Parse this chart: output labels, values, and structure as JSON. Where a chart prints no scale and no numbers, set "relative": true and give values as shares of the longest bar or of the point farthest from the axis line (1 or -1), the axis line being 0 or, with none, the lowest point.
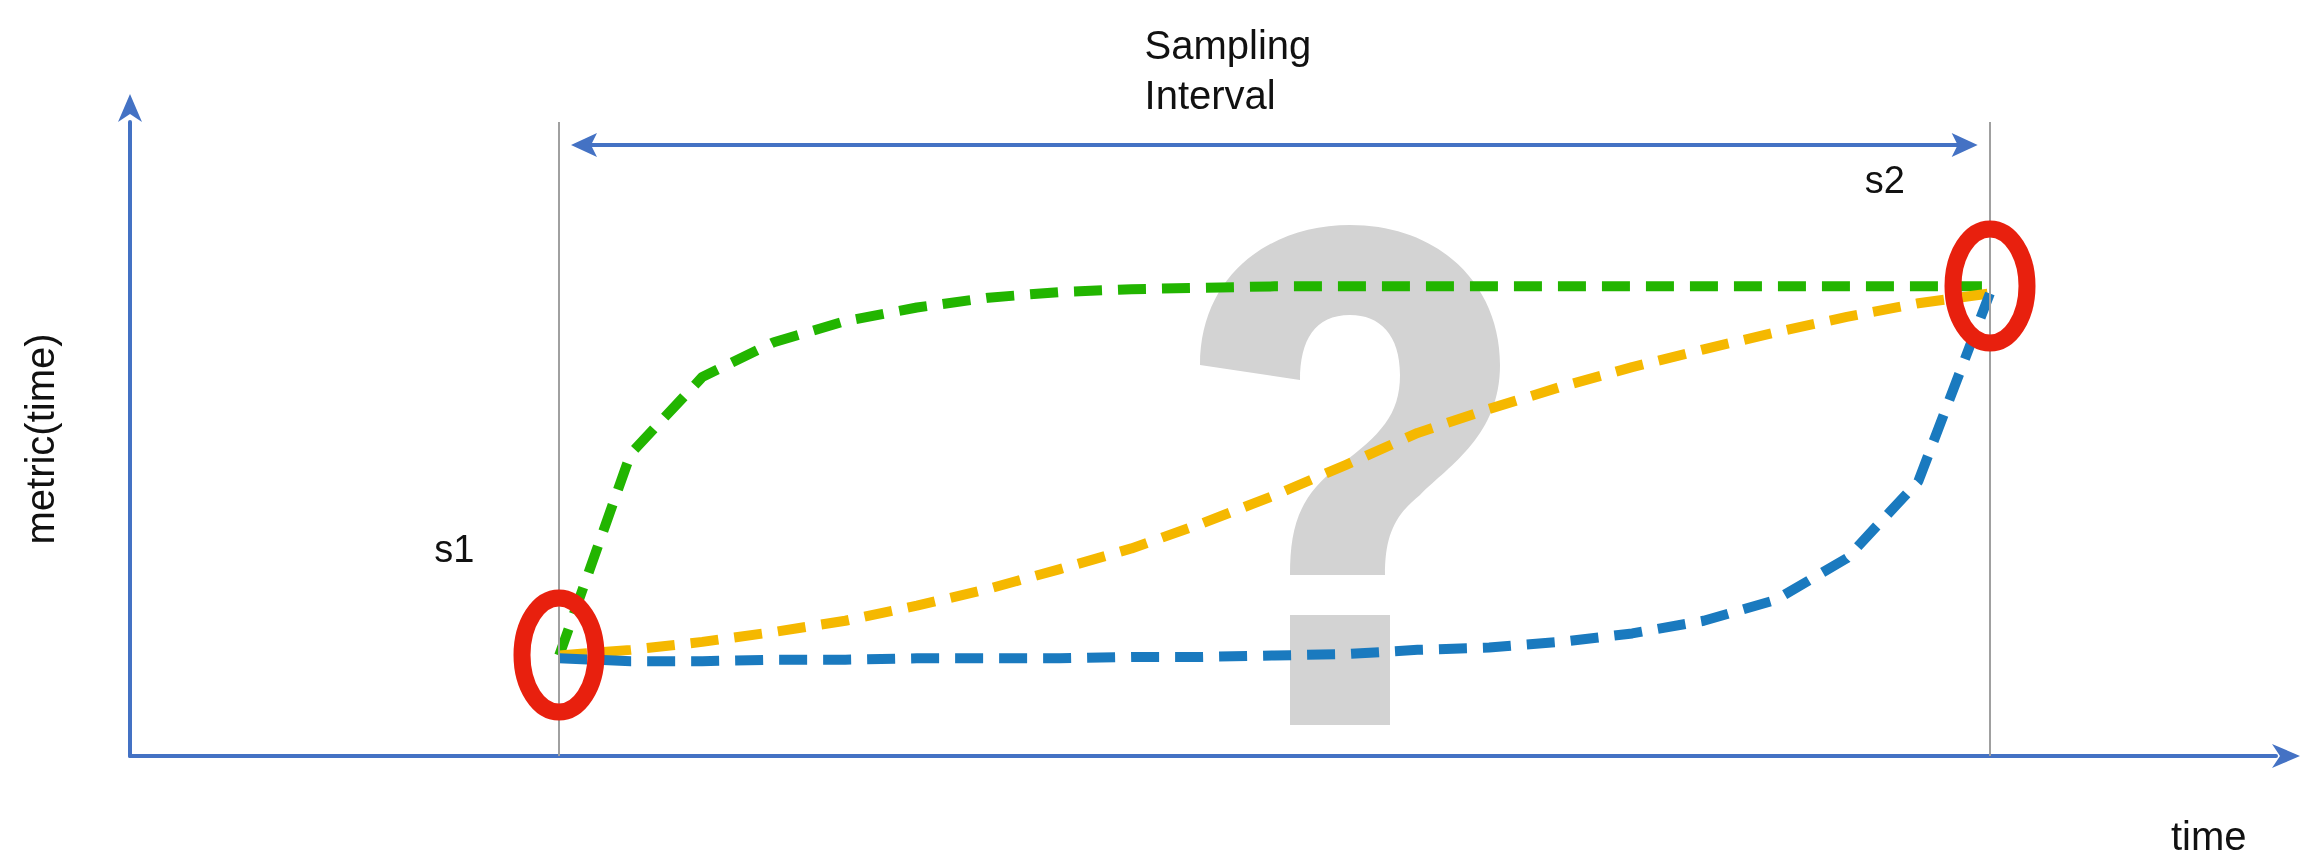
{
  "chart_data": {
    "type": "line",
    "relative": true,
    "xlabel": "time",
    "ylabel": "metric(time)",
    "annotations": [
      "Sampling Interval",
      "s1",
      "s2"
    ],
    "line_style": "dashed",
    "marker": "none",
    "categories": [
      null,
      null,
      null,
      null,
      null,
      null,
      null,
      null,
      null,
      null,
      null,
      null,
      null,
      null,
      null,
      null,
      null,
      null,
      null,
      null,
      null,
      null,
      null,
      null,
      null,
      null,
      null,
      null,
      null,
      null,
      null
    ],
    "series": [
      {
        "color": "#22b500",
        "values": [
          null,
          null,
          null,
          null,
          null,
          null,
          0.214,
          0.644,
          0.807,
          0.881,
          0.926,
          0.955,
          0.976,
          0.988,
          0.994,
          0.997,
          1.0,
          1.0,
          1.0,
          1.0,
          1.0,
          1.0,
          1.0,
          1.0,
          1.0,
          1.0,
          1.0,
          null,
          null,
          null,
          null
        ]
      },
      {
        "color": "#f5b800",
        "values": [
          null,
          null,
          null,
          null,
          null,
          null,
          0.214,
          0.226,
          0.243,
          0.264,
          0.288,
          0.32,
          0.356,
          0.398,
          0.442,
          0.496,
          0.555,
          0.62,
          0.688,
          0.739,
          0.786,
          0.828,
          0.866,
          0.902,
          0.935,
          0.964,
          0.985,
          null,
          null,
          null,
          null
        ]
      },
      {
        "color": "#1a7abf",
        "values": [
          null,
          null,
          null,
          null,
          null,
          null,
          0.208,
          0.202,
          0.202,
          0.205,
          0.205,
          0.208,
          0.208,
          0.208,
          0.211,
          0.211,
          0.214,
          0.217,
          0.226,
          0.231,
          0.243,
          0.261,
          0.288,
          0.332,
          0.421,
          0.585,
          0.985,
          null,
          null,
          null,
          null
        ]
      }
    ]
  }
}
